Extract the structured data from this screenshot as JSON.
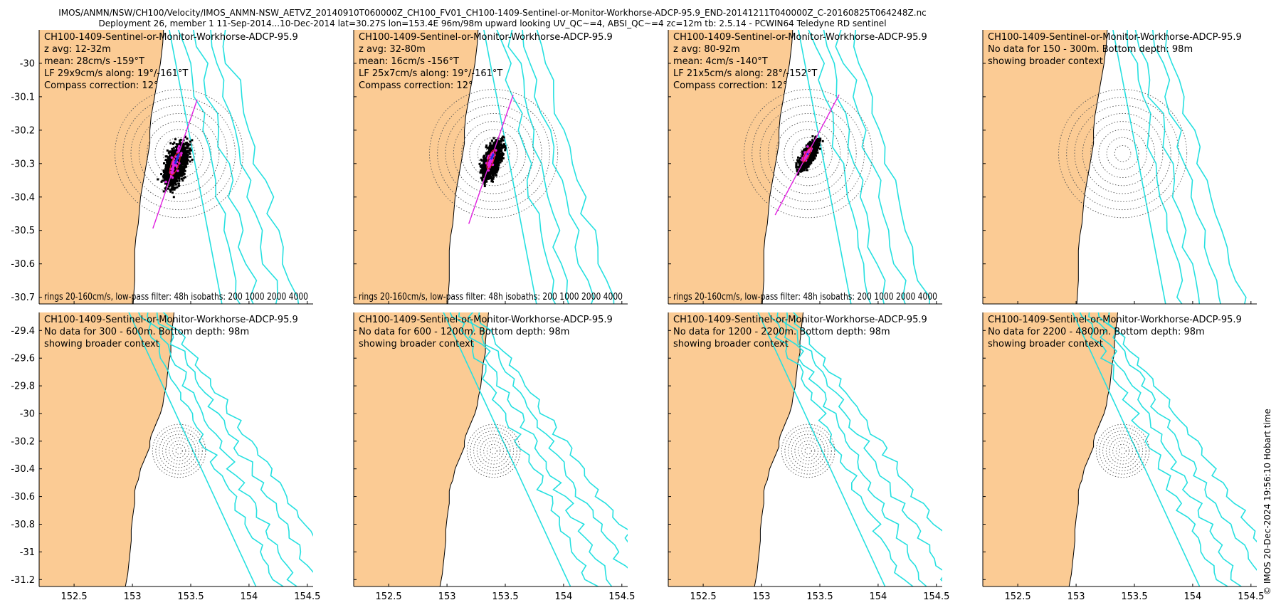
{
  "header": {
    "line1": "IMOS/ANMN/NSW/CH100/Velocity/IMOS_ANMN-NSW_AETVZ_20140910T060000Z_CH100_FV01_CH100-1409-Sentinel-or-Monitor-Workhorse-ADCP-95.9_END-20141211T040000Z_C-20160825T064248Z.nc",
    "line2": "Deployment 26, member 1 11-Sep-2014...10-Dec-2014 lat=30.27S lon=153.4E 96m/98m upward looking UV_QC~=4, ABSI_QC~=4 zc=12m tb: 2.5.14 - PCWIN64 Teledyne RD sentinel"
  },
  "copyright": "© IMOS 20-Dec-2024 19:56:10 Hobart time",
  "colors": {
    "land": "#fbcb94",
    "isobath": "#26e0e0",
    "rings": "#555555",
    "scatter": "#000000",
    "principal_axis": "#e020e0",
    "mean_vector": "#2030e0",
    "ellipse": "#e02020"
  },
  "chart_data": {
    "type": "scatter",
    "xlim": [
      152.2,
      154.55
    ],
    "x_ticks": [
      152.5,
      153,
      153.5,
      154,
      154.5
    ],
    "x_tick_labels": [
      "152.5",
      "153",
      "153.5",
      "154",
      "154.5"
    ],
    "row1_ylim": [
      -30.72,
      -29.9
    ],
    "row1_y_ticks": [
      -30,
      -30.1,
      -30.2,
      -30.3,
      -30.4,
      -30.5,
      -30.6,
      -30.7
    ],
    "row1_y_tick_labels": [
      "-30",
      "-30.1",
      "-30.2",
      "-30.3",
      "-30.4",
      "-30.5",
      "-30.6",
      "-30.7"
    ],
    "row2_ylim": [
      -31.25,
      -29.27
    ],
    "row2_y_ticks": [
      -29.4,
      -29.6,
      -29.8,
      -30,
      -30.2,
      -30.4,
      -30.6,
      -30.8,
      -31,
      -31.2
    ],
    "row2_y_tick_labels": [
      "-29.4",
      "-29.6",
      "-29.8",
      "-30",
      "-30.2",
      "-30.4",
      "-30.6",
      "-30.8",
      "-31",
      "-31.2"
    ],
    "mooring": {
      "lon": 153.4,
      "lat": -30.27
    },
    "rings_cm_s": [
      20,
      40,
      60,
      80,
      100,
      120,
      140,
      160
    ],
    "panels": [
      {
        "row": 0,
        "col": 0,
        "title": "CH100-1409-Sentinel-or-Monitor-Workhorse-ADCP-95.9",
        "lines": [
          "z avg: 12-32m",
          "mean: 28cm/s -159°T",
          "LF 29x9cm/s along: 19°/-161°T",
          "Compass correction: 12°"
        ],
        "footer": "rings 20-160cm/s, low-pass filter: 48h isobaths: 200 1000 2000 4000",
        "has_data": true,
        "mean_speed": 28,
        "mean_dir": -159,
        "major": 29,
        "minor": 9,
        "axis_dir": 19
      },
      {
        "row": 0,
        "col": 1,
        "title": "CH100-1409-Sentinel-or-Monitor-Workhorse-ADCP-95.9",
        "lines": [
          "z avg: 32-80m",
          "mean: 16cm/s -156°T",
          "LF 25x7cm/s along: 19°/-161°T",
          "Compass correction: 12°"
        ],
        "footer": "rings 20-160cm/s, low-pass filter: 48h isobaths: 200 1000 2000 4000",
        "has_data": true,
        "mean_speed": 16,
        "mean_dir": -156,
        "major": 25,
        "minor": 7,
        "axis_dir": 19
      },
      {
        "row": 0,
        "col": 2,
        "title": "CH100-1409-Sentinel-or-Monitor-Workhorse-ADCP-95.9",
        "lines": [
          "z avg: 80-92m",
          "mean: 4cm/s -140°T",
          "LF 21x5cm/s along: 28°/-152°T",
          "Compass correction: 12°"
        ],
        "footer": "rings 20-160cm/s, low-pass filter: 48h isobaths: 200 1000 2000 4000",
        "has_data": true,
        "mean_speed": 4,
        "mean_dir": -140,
        "major": 21,
        "minor": 5,
        "axis_dir": 28
      },
      {
        "row": 0,
        "col": 3,
        "title": "CH100-1409-Sentinel-or-Monitor-Workhorse-ADCP-95.9",
        "lines": [
          "No data for 150 - 300m. Bottom depth: 98m",
          "showing broader context"
        ],
        "footer": "",
        "has_data": false
      },
      {
        "row": 1,
        "col": 0,
        "title": "CH100-1409-Sentinel-or-Monitor-Workhorse-ADCP-95.9",
        "lines": [
          "No data for 300 - 600m. Bottom depth: 98m",
          "showing broader context"
        ],
        "footer": "",
        "has_data": false
      },
      {
        "row": 1,
        "col": 1,
        "title": "CH100-1409-Sentinel-or-Monitor-Workhorse-ADCP-95.9",
        "lines": [
          "No data for 600 - 1200m. Bottom depth: 98m",
          "showing broader context"
        ],
        "footer": "",
        "has_data": false
      },
      {
        "row": 1,
        "col": 2,
        "title": "CH100-1409-Sentinel-or-Monitor-Workhorse-ADCP-95.9",
        "lines": [
          "No data for 1200 - 2200m. Bottom depth: 98m",
          "showing broader context"
        ],
        "footer": "",
        "has_data": false
      },
      {
        "row": 1,
        "col": 3,
        "title": "CH100-1409-Sentinel-or-Monitor-Workhorse-ADCP-95.9",
        "lines": [
          "No data for 2200 - 4800m. Bottom depth: 98m",
          "showing broader context"
        ],
        "footer": "",
        "has_data": false
      }
    ]
  }
}
